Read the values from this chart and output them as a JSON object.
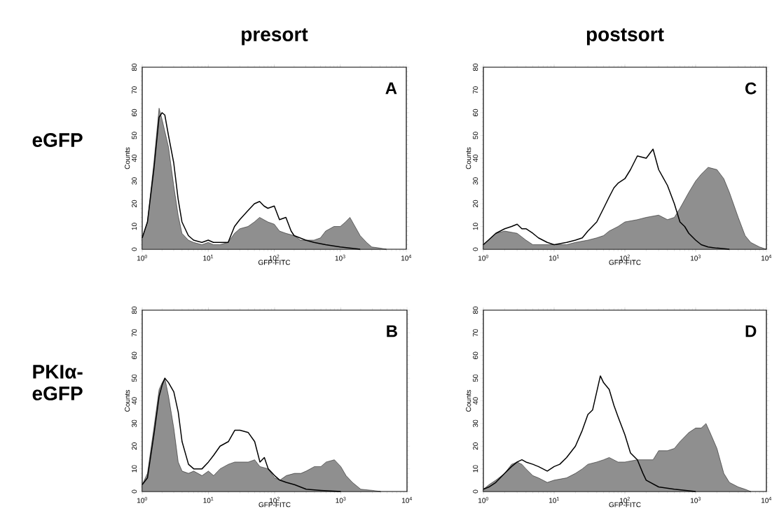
{
  "chart_data": [
    {
      "type": "area",
      "title": "presort",
      "xlabel": "GFP-FITC",
      "ylabel": "Counts",
      "annotations": [
        "A",
        "eGFP"
      ],
      "log": "x",
      "xlim": [
        1,
        10000
      ],
      "ylim": [
        0,
        80
      ],
      "xticks": [
        {
          "value": 1,
          "label": "10$^{0}$"
        },
        {
          "value": 10,
          "label": "10$^{1}$"
        },
        {
          "value": 100,
          "label": "10$^{2}$"
        },
        {
          "value": 1000,
          "label": "10$^{3}$"
        },
        {
          "value": 10000,
          "label": "10$^{4}$"
        }
      ],
      "yticks": [
        0,
        10,
        20,
        30,
        40,
        50,
        60,
        70,
        80
      ],
      "series": [
        {
          "color": "#8f8f8f",
          "x": [
            1,
            1.2,
            1.5,
            1.8,
            2,
            2.5,
            3,
            3.5,
            4,
            5,
            6,
            8,
            10,
            12,
            15,
            20,
            25,
            30,
            40,
            50,
            60,
            80,
            100,
            120,
            150,
            200,
            250,
            300,
            400,
            500,
            600,
            800,
            1000,
            1200,
            1400,
            1600,
            2000,
            2500,
            3000,
            4000,
            5000
          ],
          "values": [
            5,
            12,
            38,
            62,
            57,
            45,
            28,
            15,
            7,
            4,
            3,
            2,
            3,
            2,
            2,
            3,
            7,
            9,
            10,
            12,
            14,
            12,
            11,
            8,
            7,
            6,
            4,
            4,
            4,
            5,
            8,
            10,
            10,
            12,
            14,
            11,
            6,
            3,
            1,
            0.5,
            0
          ]
        },
        {
          "type": "line",
          "color": "#000000",
          "x": [
            1,
            1.2,
            1.5,
            1.8,
            2,
            2.2,
            2.5,
            3,
            3.5,
            4,
            5,
            6,
            8,
            10,
            12,
            15,
            20,
            25,
            30,
            40,
            50,
            60,
            70,
            80,
            100,
            120,
            150,
            180,
            200,
            300,
            400,
            600,
            1000,
            2000
          ],
          "values": [
            5,
            12,
            35,
            58,
            60,
            59,
            50,
            38,
            22,
            12,
            6,
            4,
            3,
            4,
            3,
            3,
            3,
            10,
            13,
            17,
            20,
            21,
            19,
            18,
            19,
            13,
            14,
            8,
            6,
            4,
            3,
            2,
            1,
            0
          ]
        }
      ]
    },
    {
      "type": "area",
      "title": "postsort",
      "xlabel": "GFP-FITC",
      "ylabel": "Counts",
      "annotations": [
        "C"
      ],
      "log": "x",
      "xlim": [
        1,
        10000
      ],
      "ylim": [
        0,
        80
      ],
      "xticks": [
        {
          "value": 1,
          "label": "10$^{0}$"
        },
        {
          "value": 10,
          "label": "10$^{1}$"
        },
        {
          "value": 100,
          "label": "10$^{2}$"
        },
        {
          "value": 1000,
          "label": "10$^{3}$"
        },
        {
          "value": 10000,
          "label": "10$^{4}$"
        }
      ],
      "yticks": [
        0,
        10,
        20,
        30,
        40,
        50,
        60,
        70,
        80
      ],
      "series": [
        {
          "color": "#8f8f8f",
          "x": [
            1,
            1.5,
            2,
            3,
            4,
            5,
            8,
            10,
            15,
            20,
            30,
            40,
            50,
            60,
            80,
            100,
            150,
            200,
            300,
            400,
            500,
            600,
            800,
            1000,
            1200,
            1500,
            2000,
            2500,
            3000,
            4000,
            5000,
            6000,
            8000,
            10000
          ],
          "values": [
            2,
            7,
            8,
            7,
            4,
            2,
            2,
            2,
            2,
            3,
            4,
            5,
            6,
            8,
            10,
            12,
            13,
            14,
            15,
            13,
            14,
            18,
            25,
            30,
            33,
            36,
            35,
            31,
            25,
            14,
            6,
            3,
            1,
            0
          ]
        },
        {
          "type": "line",
          "color": "#000000",
          "x": [
            1,
            1.5,
            2,
            2.5,
            3,
            3.5,
            4,
            5,
            6,
            8,
            10,
            15,
            20,
            25,
            30,
            40,
            50,
            60,
            70,
            80,
            100,
            120,
            150,
            200,
            250,
            300,
            400,
            500,
            600,
            700,
            800,
            1000,
            1200,
            1500,
            2000,
            3000
          ],
          "values": [
            2,
            7,
            9,
            10,
            11,
            9,
            9,
            7,
            5,
            3,
            2,
            3,
            4,
            5,
            8,
            12,
            18,
            23,
            27,
            29,
            31,
            35,
            41,
            40,
            44,
            35,
            28,
            20,
            12,
            10,
            7,
            4,
            2,
            1,
            0.5,
            0
          ]
        }
      ]
    },
    {
      "type": "area",
      "xlabel": "GFP-FITC",
      "ylabel": "Counts",
      "annotations": [
        "B",
        "PKIα-eGFP"
      ],
      "log": "x",
      "xlim": [
        1,
        10000
      ],
      "ylim": [
        0,
        80
      ],
      "xticks": [
        {
          "value": 1,
          "label": "10$^{0}$"
        },
        {
          "value": 10,
          "label": "10$^{1}$"
        },
        {
          "value": 100,
          "label": "10$^{2}$"
        },
        {
          "value": 1000,
          "label": "10$^{3}$"
        },
        {
          "value": 10000,
          "label": "10$^{4}$"
        }
      ],
      "yticks": [
        0,
        10,
        20,
        30,
        40,
        50,
        60,
        70,
        80
      ],
      "series": [
        {
          "color": "#8f8f8f",
          "x": [
            1,
            1.2,
            1.5,
            1.8,
            2,
            2.2,
            2.5,
            3,
            3.5,
            4,
            5,
            6,
            8,
            10,
            12,
            15,
            20,
            25,
            30,
            40,
            50,
            60,
            80,
            100,
            120,
            150,
            200,
            250,
            300,
            400,
            500,
            600,
            800,
            1000,
            1200,
            1500,
            2000,
            3000,
            4000
          ],
          "values": [
            3,
            8,
            28,
            45,
            48,
            50,
            42,
            28,
            13,
            9,
            8,
            9,
            7,
            9,
            7,
            10,
            12,
            13,
            13,
            13,
            14,
            11,
            10,
            6,
            5,
            7,
            8,
            8,
            9,
            11,
            11,
            13,
            14,
            11,
            7,
            4,
            1,
            0.5,
            0
          ]
        },
        {
          "type": "line",
          "color": "#000000",
          "x": [
            1,
            1.2,
            1.5,
            1.8,
            2,
            2.2,
            2.5,
            3,
            3.5,
            4,
            5,
            6,
            8,
            10,
            12,
            15,
            20,
            25,
            30,
            40,
            50,
            60,
            70,
            80,
            100,
            120,
            150,
            200,
            300,
            500,
            1000
          ],
          "values": [
            3,
            6,
            25,
            42,
            47,
            50,
            48,
            44,
            35,
            22,
            12,
            10,
            10,
            13,
            16,
            20,
            22,
            27,
            27,
            26,
            22,
            13,
            15,
            10,
            7,
            5,
            4,
            3,
            1,
            0.5,
            0
          ]
        }
      ]
    },
    {
      "type": "area",
      "xlabel": "GFP-FITC",
      "ylabel": "Counts",
      "annotations": [
        "D"
      ],
      "log": "x",
      "xlim": [
        1,
        10000
      ],
      "ylim": [
        0,
        80
      ],
      "xticks": [
        {
          "value": 1,
          "label": "10$^{0}$"
        },
        {
          "value": 10,
          "label": "10$^{1}$"
        },
        {
          "value": 100,
          "label": "10$^{2}$"
        },
        {
          "value": 1000,
          "label": "10$^{3}$"
        },
        {
          "value": 10000,
          "label": "10$^{4}$"
        }
      ],
      "yticks": [
        0,
        10,
        20,
        30,
        40,
        50,
        60,
        70,
        80
      ],
      "series": [
        {
          "color": "#8f8f8f",
          "x": [
            1,
            1.2,
            1.5,
            2,
            2.5,
            3,
            3.5,
            4,
            5,
            6,
            8,
            10,
            15,
            20,
            25,
            30,
            40,
            50,
            60,
            80,
            100,
            150,
            200,
            250,
            300,
            400,
            500,
            600,
            800,
            1000,
            1200,
            1400,
            1600,
            2000,
            2500,
            3000,
            4000,
            5000,
            6000
          ],
          "values": [
            1,
            3,
            5,
            8,
            12,
            13,
            12,
            10,
            7,
            6,
            4,
            5,
            6,
            8,
            10,
            12,
            13,
            14,
            15,
            13,
            13,
            14,
            14,
            14,
            18,
            18,
            19,
            22,
            26,
            28,
            28,
            30,
            26,
            19,
            8,
            4,
            2,
            1,
            0
          ]
        },
        {
          "type": "line",
          "color": "#000000",
          "x": [
            1,
            1.2,
            1.5,
            2,
            2.5,
            3,
            3.5,
            4,
            5,
            6,
            8,
            10,
            12,
            15,
            20,
            25,
            30,
            35,
            40,
            45,
            50,
            60,
            70,
            80,
            100,
            120,
            150,
            180,
            200,
            300,
            500,
            1000
          ],
          "values": [
            1,
            2,
            4,
            8,
            11,
            13,
            14,
            13,
            12,
            11,
            9,
            11,
            12,
            15,
            20,
            27,
            34,
            36,
            44,
            51,
            48,
            45,
            38,
            33,
            25,
            17,
            14,
            8,
            5,
            2,
            1,
            0
          ]
        }
      ]
    }
  ]
}
